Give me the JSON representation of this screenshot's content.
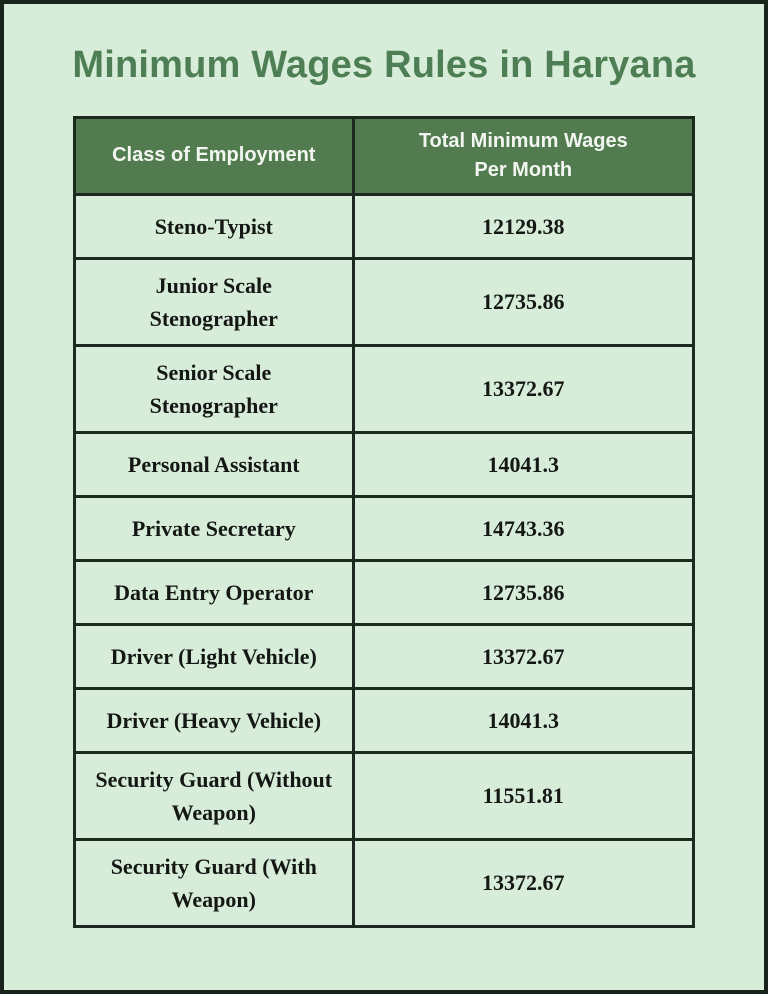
{
  "page": {
    "title": "Minimum Wages Rules in Haryana",
    "colors": {
      "background": "#d7edda",
      "frame_border": "#18241b",
      "title_text": "#4e7e53",
      "header_background": "#527c50",
      "header_text": "#f2f6f1",
      "cell_text": "#141714",
      "grid_border": "#1c291e"
    }
  },
  "table": {
    "columns": [
      "Class of Employment",
      "Total Minimum Wages Per Month"
    ],
    "rows": [
      {
        "class_of_employment": "Steno-Typist",
        "total_minimum_wages_per_month": "12129.38"
      },
      {
        "class_of_employment": "Junior Scale Stenographer",
        "total_minimum_wages_per_month": "12735.86"
      },
      {
        "class_of_employment": "Senior Scale Stenographer",
        "total_minimum_wages_per_month": "13372.67"
      },
      {
        "class_of_employment": "Personal Assistant",
        "total_minimum_wages_per_month": "14041.3"
      },
      {
        "class_of_employment": "Private Secretary",
        "total_minimum_wages_per_month": "14743.36"
      },
      {
        "class_of_employment": "Data Entry Operator",
        "total_minimum_wages_per_month": "12735.86"
      },
      {
        "class_of_employment": "Driver (Light Vehicle)",
        "total_minimum_wages_per_month": "13372.67"
      },
      {
        "class_of_employment": "Driver (Heavy Vehicle)",
        "total_minimum_wages_per_month": "14041.3"
      },
      {
        "class_of_employment": "Security Guard (Without Weapon)",
        "total_minimum_wages_per_month": "11551.81"
      },
      {
        "class_of_employment": "Security Guard (With Weapon)",
        "total_minimum_wages_per_month": "13372.67"
      }
    ]
  },
  "chart_data": {
    "type": "table",
    "title": "Minimum Wages Rules in Haryana",
    "columns": [
      "Class of Employment",
      "Total Minimum Wages Per Month"
    ],
    "categories": [
      "Steno-Typist",
      "Junior Scale Stenographer",
      "Senior Scale Stenographer",
      "Personal Assistant",
      "Private Secretary",
      "Data Entry Operator",
      "Driver (Light Vehicle)",
      "Driver (Heavy Vehicle)",
      "Security Guard (Without Weapon)",
      "Security Guard (With Weapon)"
    ],
    "values": [
      12129.38,
      12735.86,
      13372.67,
      14041.3,
      14743.36,
      12735.86,
      13372.67,
      14041.3,
      11551.81,
      13372.67
    ]
  }
}
